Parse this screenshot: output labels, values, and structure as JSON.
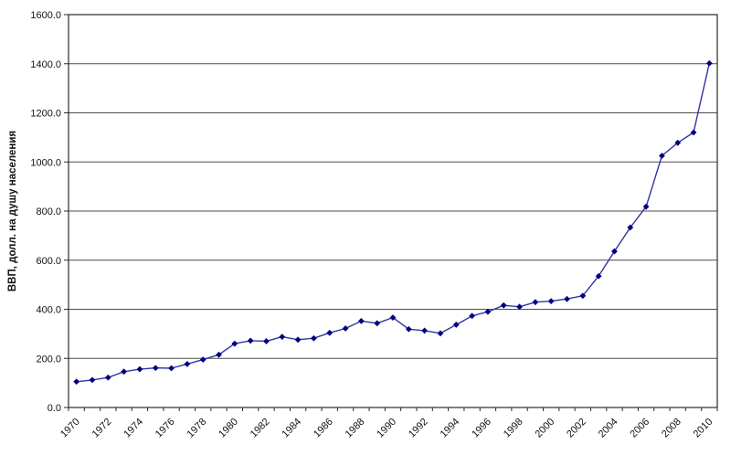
{
  "chart_data": {
    "type": "line",
    "title": "",
    "xlabel": "",
    "ylabel": "ВВП, долл. на душу населения",
    "ylim": [
      0,
      1600
    ],
    "ytick_step": 200,
    "ytick_labels": [
      "0.0",
      "200.0",
      "400.0",
      "600.0",
      "800.0",
      "1000.0",
      "1200.0",
      "1400.0",
      "1600.0"
    ],
    "x": [
      1970,
      1971,
      1972,
      1973,
      1974,
      1975,
      1976,
      1977,
      1978,
      1979,
      1980,
      1981,
      1982,
      1983,
      1984,
      1985,
      1986,
      1987,
      1988,
      1989,
      1990,
      1991,
      1992,
      1993,
      1994,
      1995,
      1996,
      1997,
      1998,
      1999,
      2000,
      2001,
      2002,
      2003,
      2004,
      2005,
      2006,
      2007,
      2008,
      2009,
      2010
    ],
    "xtick_labels": [
      "1970",
      "1972",
      "1974",
      "1976",
      "1978",
      "1980",
      "1982",
      "1984",
      "1986",
      "1988",
      "1990",
      "1992",
      "1994",
      "1996",
      "1998",
      "2000",
      "2002",
      "2004",
      "2006",
      "2008",
      "2010"
    ],
    "values": [
      105,
      112,
      122,
      146,
      156,
      161,
      160,
      177,
      195,
      215,
      260,
      272,
      270,
      288,
      276,
      282,
      304,
      322,
      352,
      343,
      366,
      319,
      313,
      302,
      337,
      373,
      390,
      416,
      410,
      429,
      433,
      442,
      455,
      535,
      636,
      733,
      818,
      1025,
      1078,
      1120,
      1402
    ],
    "grid": true,
    "legend": "none",
    "marker": "diamond",
    "colors": {
      "line": "#3434a4",
      "marker": "#000080",
      "grid": "#4d4d4d",
      "axis": "#2b2b2b",
      "text": "#111111",
      "background": "#ffffff"
    }
  }
}
